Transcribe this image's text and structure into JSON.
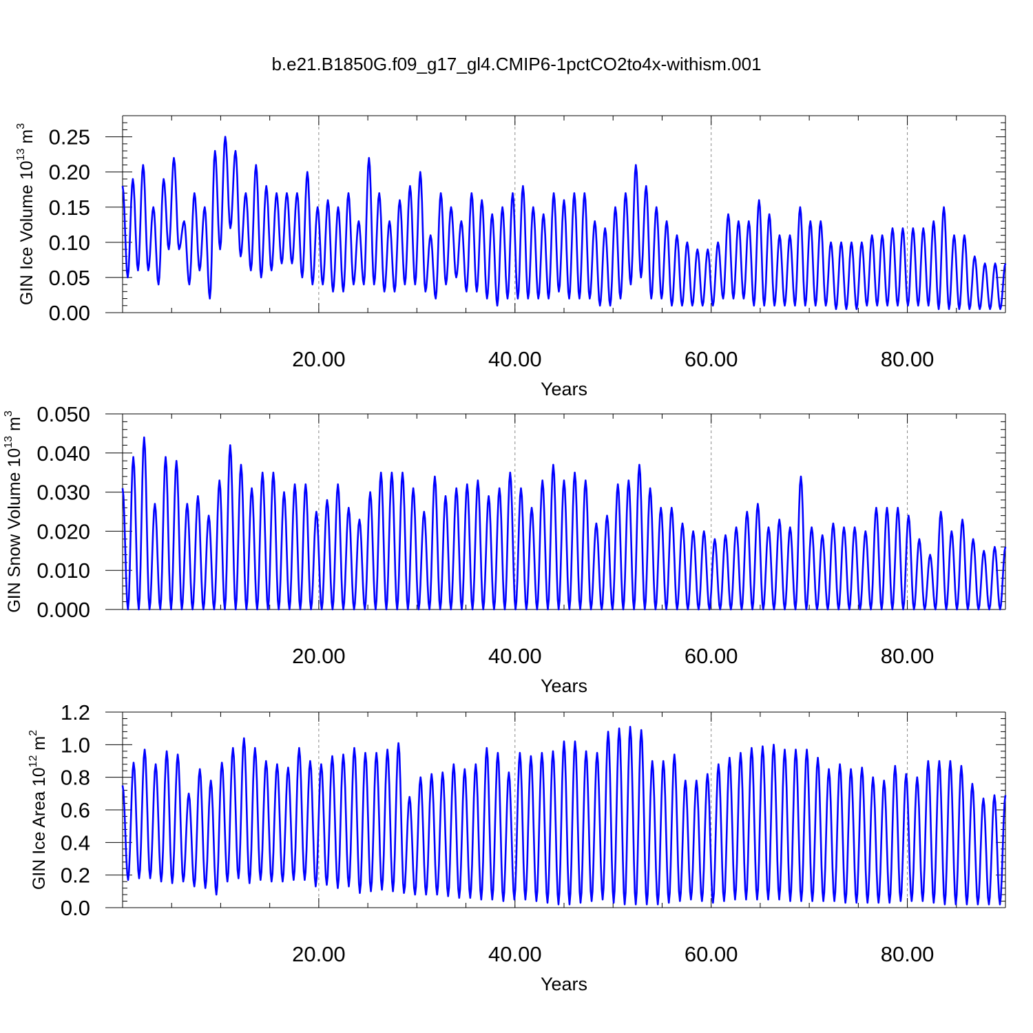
{
  "title": "b.e21.B1850G.f09_g17_gl4.CMIP6-1pctCO2to4x-withism.001",
  "line_color": "#0000ff",
  "chart_data": [
    {
      "type": "line",
      "title": "b.e21.B1850G.f09_g17_gl4.CMIP6-1pctCO2to4x-withism.001",
      "ylabel": {
        "main": "GIN Ice Volume 10",
        "sup": "13",
        "unit": " m",
        "unit_sup": "3"
      },
      "xlabel": "Years",
      "xlim": [
        0,
        90
      ],
      "xticks": [
        20,
        40,
        60,
        80
      ],
      "xticklabels": [
        "20.00",
        "40.00",
        "60.00",
        "80.00"
      ],
      "ylim": [
        0,
        0.28
      ],
      "yticks": [
        0,
        0.05,
        0.1,
        0.15,
        0.2,
        0.25
      ],
      "yticklabels": [
        "0.00",
        "0.05",
        "0.10",
        "0.15",
        "0.20",
        "0.25"
      ],
      "grid": "vertical dashed at major x ticks",
      "series": [
        {
          "peaks": [
            0.18,
            0.19,
            0.21,
            0.15,
            0.19,
            0.22,
            0.13,
            0.17,
            0.15,
            0.23,
            0.25,
            0.23,
            0.17,
            0.21,
            0.18,
            0.17,
            0.17,
            0.17,
            0.2,
            0.15,
            0.16,
            0.15,
            0.17,
            0.13,
            0.22,
            0.17,
            0.13,
            0.16,
            0.18,
            0.2,
            0.11,
            0.17,
            0.15,
            0.13,
            0.17,
            0.16,
            0.14,
            0.15,
            0.17,
            0.18,
            0.15,
            0.14,
            0.17,
            0.16,
            0.17,
            0.17,
            0.13,
            0.12,
            0.15,
            0.17,
            0.21,
            0.18,
            0.15,
            0.13,
            0.11,
            0.1,
            0.09,
            0.09,
            0.1,
            0.14,
            0.13,
            0.13,
            0.16,
            0.14,
            0.11,
            0.11,
            0.15,
            0.13,
            0.13,
            0.1,
            0.1,
            0.1,
            0.1,
            0.11,
            0.11,
            0.12,
            0.12,
            0.12,
            0.12,
            0.13,
            0.15,
            0.11,
            0.11,
            0.08,
            0.07,
            0.07
          ],
          "troughs": [
            0.05,
            0.06,
            0.06,
            0.04,
            0.09,
            0.09,
            0.04,
            0.06,
            0.02,
            0.09,
            0.12,
            0.08,
            0.06,
            0.05,
            0.06,
            0.07,
            0.07,
            0.05,
            0.04,
            0.04,
            0.03,
            0.03,
            0.04,
            0.04,
            0.04,
            0.03,
            0.03,
            0.04,
            0.04,
            0.03,
            0.02,
            0.04,
            0.05,
            0.03,
            0.03,
            0.02,
            0.01,
            0.02,
            0.02,
            0.02,
            0.02,
            0.02,
            0.03,
            0.02,
            0.02,
            0.02,
            0.01,
            0.01,
            0.02,
            0.04,
            0.05,
            0.02,
            0.02,
            0.01,
            0.01,
            0.01,
            0.01,
            0.01,
            0.02,
            0.02,
            0.02,
            0.01,
            0.01,
            0.01,
            0.01,
            0.01,
            0.01,
            0.01,
            0.01,
            0.005,
            0.005,
            0.005,
            0.01,
            0.01,
            0.01,
            0.01,
            0.01,
            0.01,
            0.01,
            0.005,
            0.005,
            0.005,
            0.005,
            0.005,
            0.005,
            0.005
          ]
        }
      ]
    },
    {
      "type": "line",
      "ylabel": {
        "main": "GIN Snow Volume 10",
        "sup": "13",
        "unit": " m",
        "unit_sup": "3"
      },
      "xlabel": "Years",
      "xlim": [
        0,
        90
      ],
      "xticks": [
        20,
        40,
        60,
        80
      ],
      "xticklabels": [
        "20.00",
        "40.00",
        "60.00",
        "80.00"
      ],
      "ylim": [
        0,
        0.05
      ],
      "yticks": [
        0,
        0.01,
        0.02,
        0.03,
        0.04,
        0.05
      ],
      "yticklabels": [
        "0.000",
        "0.010",
        "0.020",
        "0.030",
        "0.040",
        "0.050"
      ],
      "grid": "vertical dashed at major x ticks",
      "series": [
        {
          "peaks": [
            0.031,
            0.039,
            0.044,
            0.027,
            0.039,
            0.038,
            0.027,
            0.029,
            0.024,
            0.033,
            0.042,
            0.037,
            0.031,
            0.035,
            0.035,
            0.03,
            0.032,
            0.032,
            0.025,
            0.028,
            0.032,
            0.026,
            0.023,
            0.03,
            0.035,
            0.035,
            0.035,
            0.031,
            0.025,
            0.034,
            0.029,
            0.031,
            0.032,
            0.033,
            0.029,
            0.031,
            0.035,
            0.031,
            0.026,
            0.033,
            0.037,
            0.033,
            0.035,
            0.033,
            0.022,
            0.024,
            0.032,
            0.033,
            0.037,
            0.031,
            0.026,
            0.026,
            0.022,
            0.02,
            0.02,
            0.018,
            0.019,
            0.021,
            0.025,
            0.027,
            0.021,
            0.023,
            0.021,
            0.034,
            0.021,
            0.019,
            0.022,
            0.021,
            0.021,
            0.02,
            0.026,
            0.026,
            0.026,
            0.024,
            0.018,
            0.014,
            0.025,
            0.02,
            0.023,
            0.018,
            0.015,
            0.016
          ],
          "troughs": [
            0.0,
            0.0,
            0.0,
            0.0,
            0.0,
            0.0,
            0.0,
            0.0,
            0.0,
            0.0,
            0.0,
            0.0,
            0.0,
            0.0,
            0.0,
            0.0,
            0.0,
            0.0,
            0.0,
            0.0,
            0.0,
            0.0,
            0.0,
            0.0,
            0.0,
            0.0,
            0.0,
            0.0,
            0.0,
            0.0,
            0.0,
            0.0,
            0.0,
            0.0,
            0.0,
            0.0,
            0.0,
            0.0,
            0.0,
            0.0,
            0.0,
            0.0,
            0.0,
            0.0,
            0.0,
            0.0,
            0.0,
            0.0,
            0.0,
            0.0,
            0.0,
            0.0,
            0.0,
            0.0,
            0.0,
            0.0,
            0.0,
            0.0,
            0.0,
            0.0,
            0.0,
            0.0,
            0.0,
            0.0,
            0.0,
            0.0,
            0.0,
            0.0,
            0.0,
            0.0,
            0.0,
            0.0,
            0.0,
            0.0,
            0.0,
            0.0,
            0.0,
            0.0,
            0.0,
            0.0,
            0.0,
            0.0
          ]
        }
      ]
    },
    {
      "type": "line",
      "ylabel": {
        "main": "GIN Ice Area 10",
        "sup": "12",
        "unit": " m",
        "unit_sup": "2"
      },
      "xlabel": "Years",
      "xlim": [
        0,
        90
      ],
      "xticks": [
        20,
        40,
        60,
        80
      ],
      "xticklabels": [
        "20.00",
        "40.00",
        "60.00",
        "80.00"
      ],
      "ylim": [
        0,
        1.2
      ],
      "yticks": [
        0,
        0.2,
        0.4,
        0.6,
        0.8,
        1.0,
        1.2
      ],
      "yticklabels": [
        "0.0",
        "0.2",
        "0.4",
        "0.6",
        "0.8",
        "1.0",
        "1.2"
      ],
      "grid": "vertical dashed at major x ticks",
      "series": [
        {
          "peaks": [
            0.75,
            0.89,
            0.97,
            0.88,
            0.96,
            0.94,
            0.7,
            0.85,
            0.78,
            0.89,
            0.98,
            1.04,
            0.98,
            0.9,
            0.88,
            0.86,
            0.98,
            0.9,
            0.88,
            0.93,
            0.94,
            0.98,
            0.95,
            0.95,
            0.97,
            1.01,
            0.68,
            0.8,
            0.82,
            0.83,
            0.88,
            0.85,
            0.88,
            0.98,
            0.95,
            0.83,
            0.95,
            0.93,
            0.95,
            0.96,
            1.02,
            1.02,
            0.96,
            0.95,
            1.08,
            1.1,
            1.11,
            1.09,
            0.9,
            0.9,
            0.94,
            0.78,
            0.78,
            0.82,
            0.88,
            0.92,
            0.95,
            0.98,
            0.99,
            1.0,
            0.97,
            0.97,
            0.97,
            0.92,
            0.85,
            0.88,
            0.85,
            0.86,
            0.8,
            0.78,
            0.87,
            0.82,
            0.8,
            0.9,
            0.9,
            0.9,
            0.87,
            0.76,
            0.67,
            0.69
          ],
          "troughs": [
            0.17,
            0.18,
            0.18,
            0.16,
            0.15,
            0.16,
            0.13,
            0.12,
            0.08,
            0.16,
            0.18,
            0.15,
            0.17,
            0.16,
            0.16,
            0.17,
            0.17,
            0.13,
            0.14,
            0.12,
            0.13,
            0.09,
            0.1,
            0.11,
            0.1,
            0.09,
            0.08,
            0.08,
            0.08,
            0.07,
            0.06,
            0.06,
            0.05,
            0.05,
            0.04,
            0.05,
            0.05,
            0.04,
            0.03,
            0.02,
            0.02,
            0.03,
            0.04,
            0.05,
            0.03,
            0.02,
            0.02,
            0.02,
            0.02,
            0.03,
            0.04,
            0.05,
            0.04,
            0.03,
            0.04,
            0.05,
            0.05,
            0.05,
            0.05,
            0.05,
            0.04,
            0.04,
            0.04,
            0.04,
            0.04,
            0.03,
            0.03,
            0.03,
            0.03,
            0.03,
            0.04,
            0.04,
            0.04,
            0.03,
            0.02,
            0.02,
            0.02,
            0.02,
            0.02,
            0.02
          ]
        }
      ]
    }
  ]
}
